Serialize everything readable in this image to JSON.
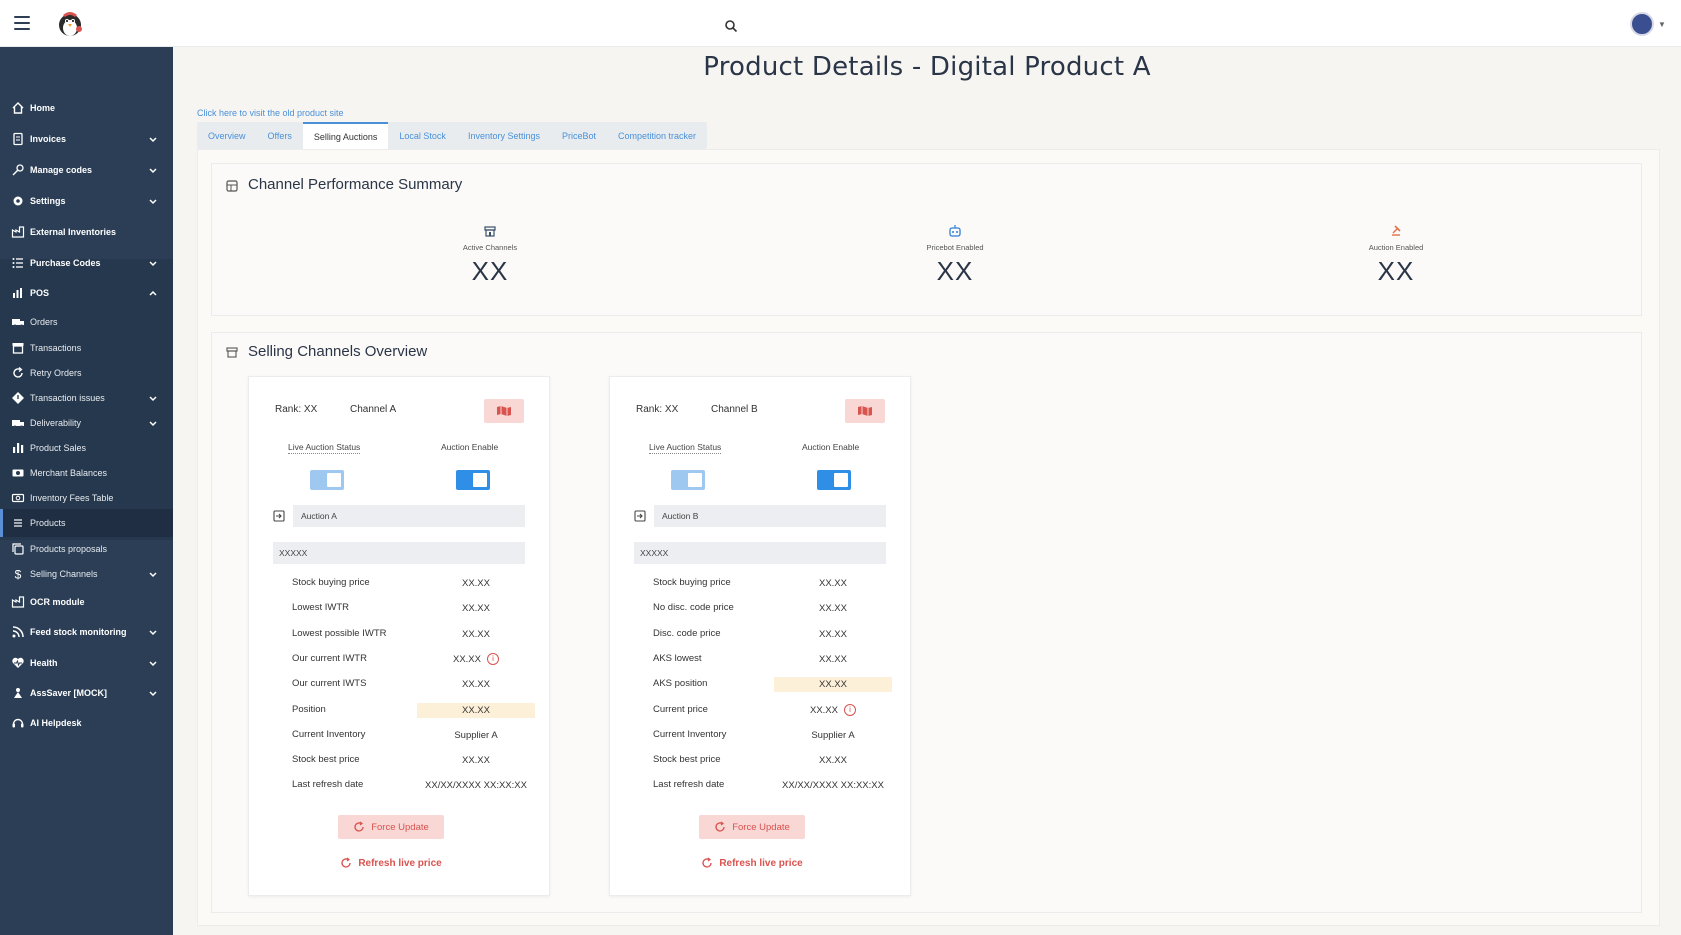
{
  "topbar": {
    "menu_icon": "hamburger-icon",
    "logo_icon": "penguin-logo",
    "search_icon": "search-icon",
    "avatar_icon": "user-avatar"
  },
  "sidebar": {
    "items": [
      {
        "label": "Home",
        "icon": "home-icon"
      },
      {
        "label": "Invoices",
        "icon": "document-icon",
        "expandable": true
      },
      {
        "label": "Manage codes",
        "icon": "key-icon",
        "expandable": true
      },
      {
        "label": "Settings",
        "icon": "gear-icon",
        "expandable": true
      },
      {
        "label": "External Inventories",
        "icon": "factory-icon"
      },
      {
        "label": "Purchase Codes",
        "icon": "list-check-icon",
        "expandable": true
      },
      {
        "label": "POS",
        "icon": "chart-hand-icon",
        "expanded": true
      },
      {
        "label": "Orders",
        "icon": "truck-icon"
      },
      {
        "label": "Transactions",
        "icon": "store-icon"
      },
      {
        "label": "Retry Orders",
        "icon": "retry-icon"
      },
      {
        "label": "Transaction issues",
        "icon": "diamond-alert-icon",
        "expandable": true
      },
      {
        "label": "Deliverability",
        "icon": "delivery-truck-icon",
        "expandable": true
      },
      {
        "label": "Product Sales",
        "icon": "bar-chart-icon"
      },
      {
        "label": "Merchant Balances",
        "icon": "cash-icon"
      },
      {
        "label": "Inventory Fees Table",
        "icon": "money-icon"
      },
      {
        "label": "Products",
        "icon": "list-icon",
        "active": true
      },
      {
        "label": "Products proposals",
        "icon": "copy-icon"
      },
      {
        "label": "Selling Channels",
        "icon": "dollar-icon",
        "expandable": true
      },
      {
        "label": "OCR module",
        "icon": "factory-icon"
      },
      {
        "label": "Feed stock monitoring",
        "icon": "rss-icon",
        "expandable": true
      },
      {
        "label": "Health",
        "icon": "heartbeat-icon",
        "expandable": true
      },
      {
        "label": "AssSaver [MOCK]",
        "icon": "person-icon",
        "expandable": true
      },
      {
        "label": "AI Helpdesk",
        "icon": "headset-icon"
      }
    ]
  },
  "main": {
    "title": "Product Details - Digital Product A",
    "old_site_link": "Click here to visit the old product site",
    "tabs": [
      {
        "label": "Overview"
      },
      {
        "label": "Offers"
      },
      {
        "label": "Selling Auctions",
        "active": true
      },
      {
        "label": "Local Stock"
      },
      {
        "label": "Inventory Settings"
      },
      {
        "label": "PriceBot"
      },
      {
        "label": "Competition tracker"
      }
    ]
  },
  "summary": {
    "title": "Channel Performance Summary",
    "metrics": [
      {
        "label": "Active Channels",
        "value": "XX",
        "icon": "store-icon"
      },
      {
        "label": "Pricebot Enabled",
        "value": "XX",
        "icon": "robot-icon"
      },
      {
        "label": "Auction Enabled",
        "value": "XX",
        "icon": "gavel-icon"
      }
    ]
  },
  "overview": {
    "title": "Selling Channels Overview",
    "channels": [
      {
        "rank": "Rank: XX",
        "name": "Channel A",
        "live_status_label": "Live Auction Status",
        "enable_label": "Auction Enable",
        "auction_name": "Auction A",
        "code_value": "XXXXX",
        "rows": [
          {
            "label": "Stock buying price",
            "value": "XX.XX"
          },
          {
            "label": "Lowest IWTR",
            "value": "XX.XX"
          },
          {
            "label": "Lowest possible IWTR",
            "value": "XX.XX"
          },
          {
            "label": "Our current IWTR",
            "value": "XX.XX",
            "info": true
          },
          {
            "label": "Our current IWTS",
            "value": "XX.XX"
          },
          {
            "label": "Position",
            "value": "XX.XX",
            "highlight": true
          },
          {
            "label": "Current Inventory",
            "value": "Supplier A"
          },
          {
            "label": "Stock best price",
            "value": "XX.XX"
          },
          {
            "label": "Last refresh date",
            "value": "XX/XX/XXXX XX:XX:XX"
          }
        ],
        "force_update": "Force Update",
        "refresh_live": "Refresh live price"
      },
      {
        "rank": "Rank: XX",
        "name": "Channel B",
        "live_status_label": "Live Auction Status",
        "enable_label": "Auction Enable",
        "auction_name": "Auction B",
        "code_value": "XXXXX",
        "rows": [
          {
            "label": "Stock buying price",
            "value": "XX.XX"
          },
          {
            "label": "No disc. code price",
            "value": "XX.XX"
          },
          {
            "label": "Disc. code price",
            "value": "XX.XX"
          },
          {
            "label": "AKS lowest",
            "value": "XX.XX"
          },
          {
            "label": "AKS position",
            "value": "XX.XX",
            "highlight": true
          },
          {
            "label": "Current price",
            "value": "XX.XX",
            "info": true
          },
          {
            "label": "Current Inventory",
            "value": "Supplier A"
          },
          {
            "label": "Stock best price",
            "value": "XX.XX"
          },
          {
            "label": "Last refresh date",
            "value": "XX/XX/XXXX XX:XX:XX"
          }
        ],
        "force_update": "Force Update",
        "refresh_live": "Refresh live price"
      }
    ]
  },
  "colors": {
    "sidebar": "#2b3e55",
    "accent": "#4a90d9",
    "danger": "#d9534f",
    "highlight": "#fdf0d8"
  }
}
